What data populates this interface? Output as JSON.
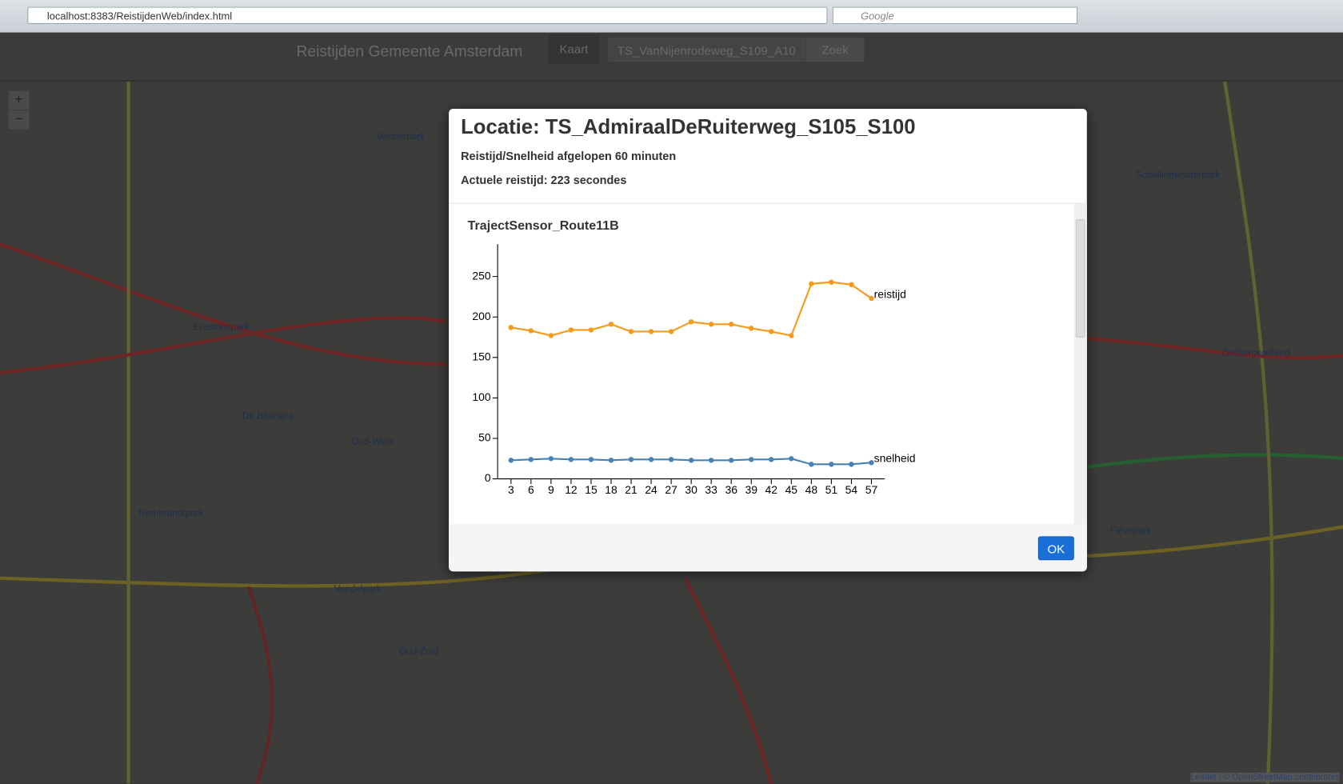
{
  "browser": {
    "url": "localhost:8383/ReistijdenWeb/index.html",
    "search": "Google"
  },
  "navbar": {
    "brand": "Reistijden Gemeente Amsterdam",
    "nav_item": "Kaart",
    "search_value": "TS_VanNijenrodeweg_S109_A10",
    "search_button": "Zoek"
  },
  "map": {
    "zoom_in": "+",
    "zoom_out": "−",
    "labels": [
      "Westerpark",
      "Erasmuspark",
      "De Baarsjes",
      "Oud-West",
      "Rembrandtpark",
      "Vondelpark",
      "Oud-Zuid",
      "Schellingwoudepark",
      "Zeeburgereiland",
      "Flevopark"
    ],
    "attribution": "Leaflet | © OpenStreetMap contributors"
  },
  "modal": {
    "title": "Locatie: TS_AdmiraalDeRuiterweg_S105_S100",
    "subtitle": "Reistijd/Snelheid afgelopen 60 minuten",
    "current": "Actuele reistijd: 223 secondes",
    "button": "OK"
  },
  "chart_data": {
    "type": "line",
    "title": "TrajectSensor_Route11B",
    "x": [
      3,
      6,
      9,
      12,
      15,
      18,
      21,
      24,
      27,
      30,
      33,
      36,
      39,
      42,
      45,
      48,
      51,
      54,
      57
    ],
    "series": [
      {
        "name": "reistijd",
        "color": "#f59a1b",
        "values": [
          187,
          183,
          177,
          184,
          184,
          191,
          182,
          182,
          182,
          194,
          191,
          191,
          186,
          182,
          177,
          241,
          243,
          240,
          223
        ]
      },
      {
        "name": "snelheid",
        "color": "#4682b4",
        "values": [
          23,
          24,
          25,
          24,
          24,
          23,
          24,
          24,
          24,
          23,
          23,
          23,
          24,
          24,
          25,
          18,
          18,
          18,
          20
        ]
      }
    ],
    "xlim": [
      1,
      59
    ],
    "xticks": [
      3,
      6,
      9,
      12,
      15,
      18,
      21,
      24,
      27,
      30,
      33,
      36,
      39,
      42,
      45,
      48,
      51,
      54,
      57
    ],
    "ylim": [
      0,
      290
    ],
    "yticks": [
      0,
      50,
      100,
      150,
      200,
      250
    ]
  }
}
